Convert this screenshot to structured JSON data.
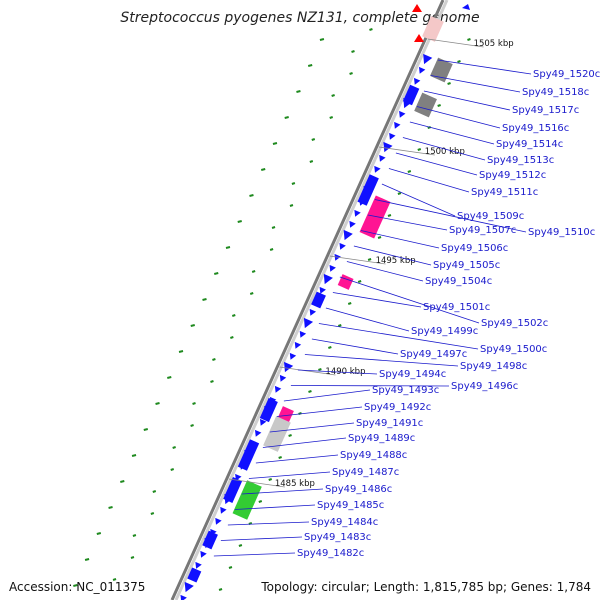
{
  "title": "Streptococcus pyogenes NZ131, complete genome",
  "accession": "Accession: NC_011375",
  "topology": "Topology: circular; Length: 1,815,785 bp; Genes: 1,784",
  "colors": {
    "forward_gene": "#1010ff",
    "rrna": "#ff1493",
    "pseudo": "#808080",
    "light": "#c8c8c8",
    "green": "#33cc33",
    "red": "#ff0000",
    "label": "#1a1acc",
    "gc_tick": "#1f8a1f",
    "backbone": "#999999"
  },
  "kbp_marks": [
    "1505 kbp",
    "1500 kbp",
    "1495 kbp",
    "1490 kbp",
    "1485 kbp"
  ],
  "gene_labels": [
    "Spy49_1520c",
    "Spy49_1518c",
    "Spy49_1517c",
    "Spy49_1516c",
    "Spy49_1514c",
    "Spy49_1513c",
    "Spy49_1512c",
    "Spy49_1511c",
    "Spy49_1509c",
    "Spy49_1510c",
    "Spy49_1507c",
    "Spy49_1506c",
    "Spy49_1505c",
    "Spy49_1504c",
    "Spy49_1502c",
    "Spy49_1501c",
    "Spy49_1499c",
    "Spy49_1500c",
    "Spy49_1497c",
    "Spy49_1498c",
    "Spy49_1494c",
    "Spy49_1496c",
    "Spy49_1493c",
    "Spy49_1492c",
    "Spy49_1491c",
    "Spy49_1489c",
    "Spy49_1488c",
    "Spy49_1487c",
    "Spy49_1486c",
    "Spy49_1485c",
    "Spy49_1484c",
    "Spy49_1483c",
    "Spy49_1482c"
  ]
}
